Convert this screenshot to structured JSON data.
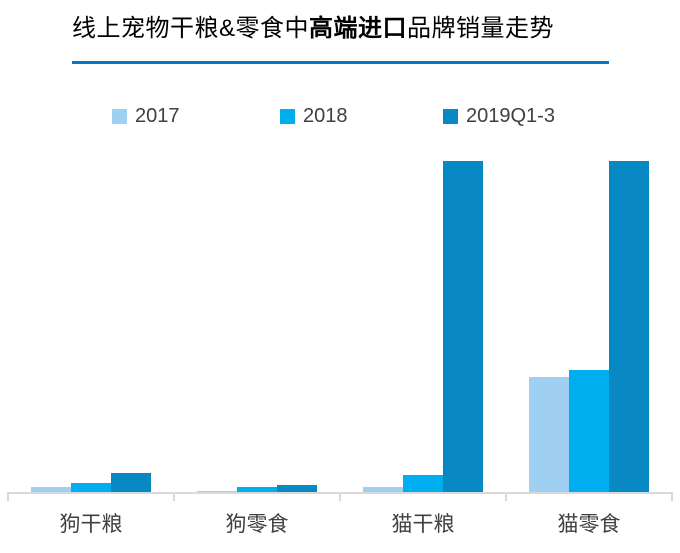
{
  "title": {
    "part1": "线上宠物干粮&零食中",
    "part2_bold": "高端进口",
    "part3": "品牌销量走势"
  },
  "colors": {
    "title_text": "#000000",
    "title_rule": "#0B77BE",
    "axis": "#D9D9D9",
    "label_text": "#404040",
    "series_2017": "#9FCFF1",
    "series_2018": "#00AEEF",
    "series_2019": "#0989C4"
  },
  "chart_data": {
    "type": "bar",
    "title": "线上宠物干粮&零食中高端进口品牌销量走势",
    "categories": [
      "狗干粮",
      "狗零食",
      "猫干粮",
      "猫零食"
    ],
    "series": [
      {
        "name": "2017",
        "color": "#9FCFF1",
        "values": [
          1.4,
          0.2,
          1.5,
          34.8
        ]
      },
      {
        "name": "2018",
        "color": "#00AEEF",
        "values": [
          2.7,
          1.4,
          5.1,
          36.9
        ]
      },
      {
        "name": "2019Q1-3",
        "color": "#0989C4",
        "values": [
          5.7,
          2.0,
          100,
          100
        ]
      }
    ],
    "xlabel": "",
    "ylabel": "",
    "ylim": [
      0,
      100
    ],
    "y_axis_visible": false,
    "grid": false,
    "legend_position": "top"
  }
}
